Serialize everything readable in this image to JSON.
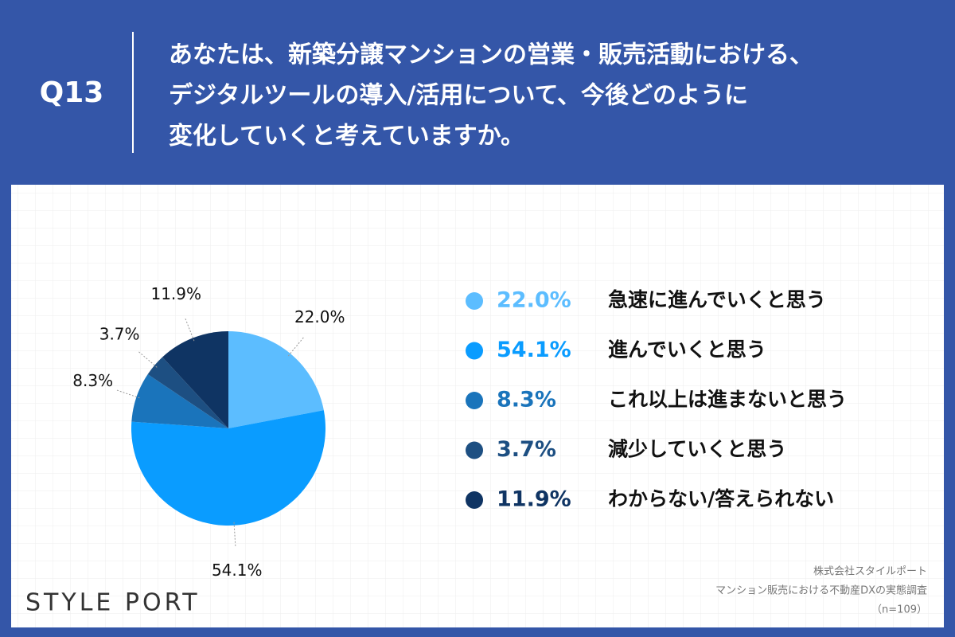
{
  "header": {
    "number": "Q13",
    "question_lines": [
      "あなたは、新築分譲マンションの営業・販売活動における、",
      "デジタルツールの導入/活用について、今後どのように",
      "変化していくと考えていますか。"
    ]
  },
  "chart_data": {
    "type": "pie",
    "categories": [
      "急速に進んでいくと思う",
      "進んでいくと思う",
      "これ以上は進まないと思う",
      "減少していくと思う",
      "わからない/答えられない"
    ],
    "values": [
      22.0,
      54.1,
      8.3,
      3.7,
      11.9
    ],
    "value_labels": [
      "22.0%",
      "54.1%",
      "8.3%",
      "3.7%",
      "11.9%"
    ],
    "colors": [
      "#5cbdff",
      "#0a9cff",
      "#1a74bb",
      "#1d4f82",
      "#0f3463"
    ]
  },
  "footer": {
    "logo": "STYLE PORT",
    "source_lines": [
      "株式会社スタイルポート",
      "マンション販売における不動産DXの実態調査",
      "（n=109）"
    ]
  }
}
